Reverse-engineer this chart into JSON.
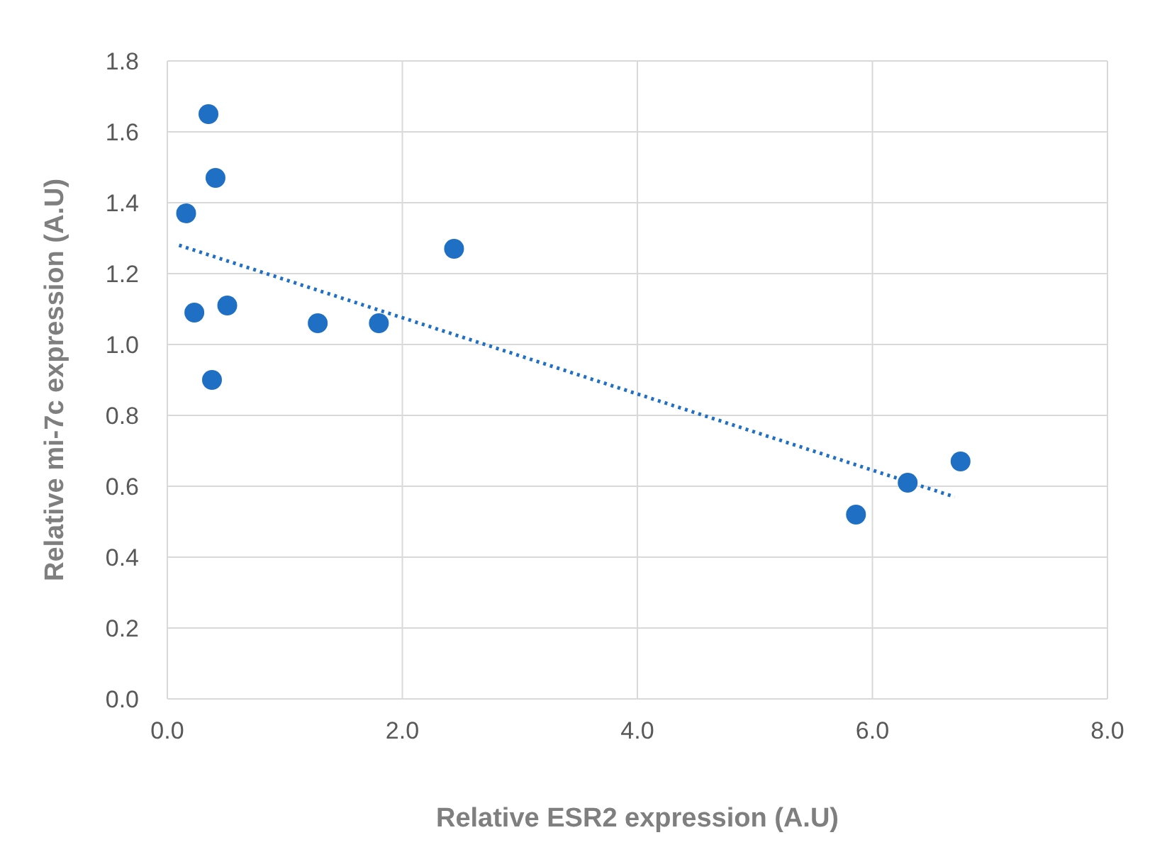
{
  "chart_data": {
    "type": "scatter",
    "xlabel": "Relative ESR2 expression (A.U)",
    "ylabel": "Relative mi-7c expression  (A.U)",
    "xlim": [
      0,
      8
    ],
    "xticks": [
      {
        "value": 0,
        "label": "0.0"
      },
      {
        "value": 2,
        "label": "2.0"
      },
      {
        "value": 4,
        "label": "4.0"
      },
      {
        "value": 6,
        "label": "6.0"
      },
      {
        "value": 8,
        "label": "8.0"
      }
    ],
    "ylim": [
      0,
      1.8
    ],
    "yticks": [
      {
        "value": 0,
        "label": "0.0"
      },
      {
        "value": 0.2,
        "label": "0.2"
      },
      {
        "value": 0.4,
        "label": "0.4"
      },
      {
        "value": 0.6,
        "label": "0.6"
      },
      {
        "value": 0.8,
        "label": "0.8"
      },
      {
        "value": 1,
        "label": "1.0"
      },
      {
        "value": 1.2,
        "label": "1.2"
      },
      {
        "value": 1.4,
        "label": "1.4"
      },
      {
        "value": 1.6,
        "label": "1.6"
      },
      {
        "value": 1.8,
        "label": "1.8"
      }
    ],
    "grid": true,
    "marker": "circle",
    "series": [
      {
        "color": "#1f6fc5",
        "x": [
          0.16,
          0.35,
          0.41,
          0.23,
          0.51,
          0.38,
          1.28,
          1.8,
          2.44,
          5.86,
          6.3,
          6.75
        ],
        "values": [
          1.37,
          1.65,
          1.47,
          1.09,
          1.11,
          0.9,
          1.06,
          1.06,
          1.27,
          0.52,
          0.61,
          0.67
        ]
      },
      {
        "type": "line",
        "color": "#1f6fc5",
        "line_style": "dotted",
        "marker": "none",
        "x": [
          0.1,
          6.7
        ],
        "values": [
          1.28,
          0.57
        ]
      }
    ]
  }
}
